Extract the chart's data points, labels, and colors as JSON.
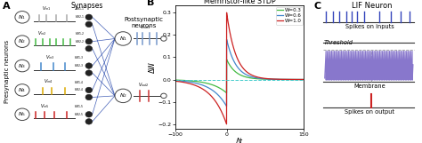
{
  "panel_A": {
    "title": "A",
    "synapses_label": "Synapses",
    "postsynaptic_label": "Postsynaptic\nneurons",
    "presynaptic_label": "Presynaptic neurons",
    "spike_colors": [
      "#aaaaaa",
      "#44bb44",
      "#4488cc",
      "#ddaa00",
      "#cc2222"
    ],
    "out_spike_color": "#7799cc",
    "out2_spike_color": "#cc3333",
    "connection_color": "#2244aa"
  },
  "panel_B": {
    "title": "B",
    "plot_title": "Memristor-like STDP",
    "xlabel": "Δt",
    "ylabel": "ΔW",
    "xlim": [
      -100,
      150
    ],
    "ylim": [
      -0.22,
      0.33
    ],
    "xticks": [
      -100,
      0,
      150
    ],
    "yticks": [
      -0.2,
      -0.1,
      0.0,
      0.1,
      0.2,
      0.3
    ],
    "legend": [
      "W=0.3",
      "W=0.6",
      "W=1.0"
    ],
    "colors": [
      "#44bb44",
      "#4488cc",
      "#cc2222"
    ],
    "dashed_color": "#44cccc",
    "tau_p": 18,
    "tau_n": 30,
    "A_p_scale": 0.3,
    "A_n_scale": 0.2
  },
  "panel_C": {
    "title": "C",
    "main_title": "LIF Neuron",
    "spikes_on_inputs": "Spikes on inputs",
    "threshold_label": "Threshold",
    "membrane_label": "Membrane",
    "spikes_on_output": "Spikes on output",
    "spike_color": "#3344bb",
    "membrane_color": "#8877cc",
    "output_spike_color": "#cc2222",
    "threshold_color": "#999999"
  },
  "bg_color": "#ffffff"
}
